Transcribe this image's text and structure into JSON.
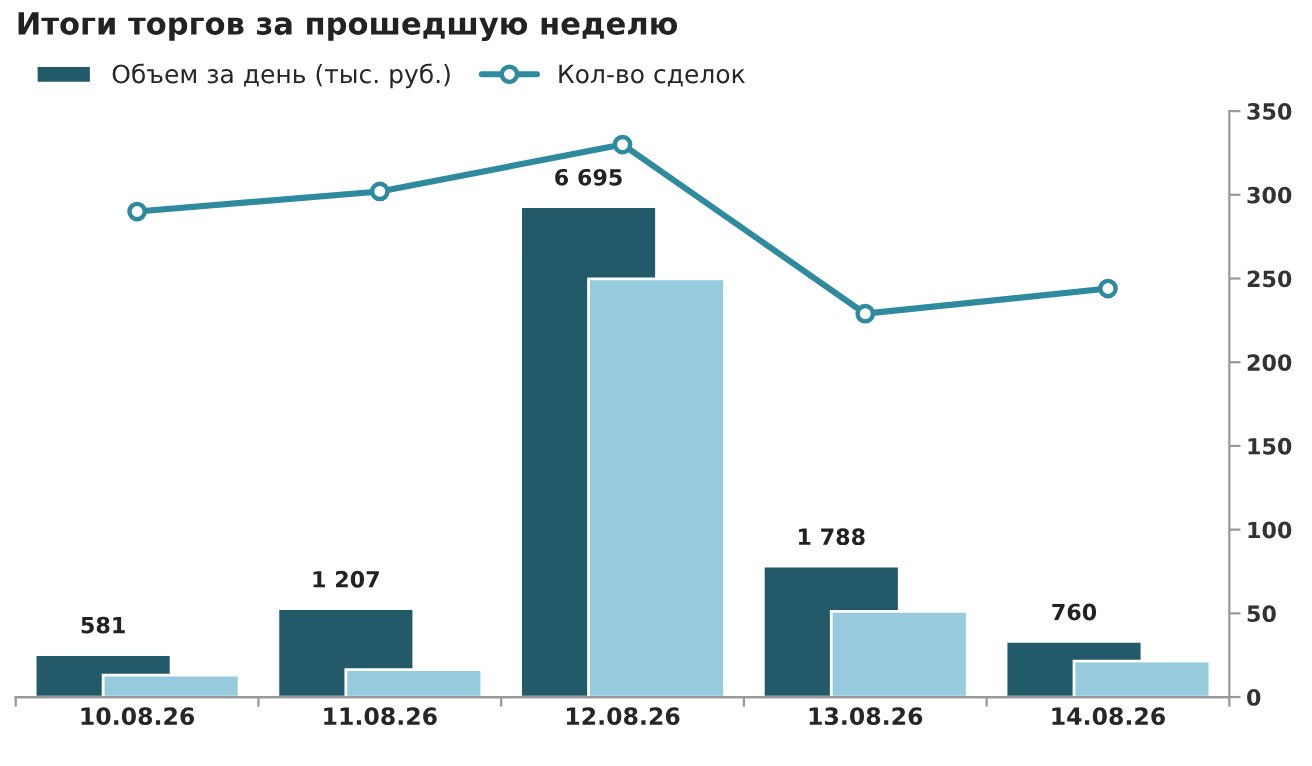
{
  "chart_data": {
    "type": "bar",
    "title": "Итоги торгов за прошедшую неделю",
    "categories": [
      "10.08.26",
      "11.08.26",
      "12.08.26",
      "13.08.26",
      "14.08.26"
    ],
    "series": [
      {
        "name": "Объем за день (тыс. руб.)",
        "color": "#225a69",
        "values": [
          581,
          1207,
          6695,
          1788,
          760
        ],
        "value_labels": [
          "581",
          "1 207",
          "6 695",
          "1 788",
          "760"
        ]
      },
      {
        "color": "#95cbdc",
        "values": [
          298,
          376,
          5710,
          1169,
          491
        ]
      },
      {
        "name": "Кол-во сделок",
        "type": "line",
        "axis": "y2",
        "color": "#2e8a9e",
        "marker": "circle",
        "values": [
          290,
          302,
          330,
          229,
          244
        ]
      }
    ],
    "ylim": [
      0,
      8000
    ],
    "y2lim": [
      0,
      350
    ],
    "y2ticks": [
      0,
      50,
      100,
      150,
      200,
      250,
      300,
      350
    ],
    "legend": "top left",
    "grid": false
  }
}
